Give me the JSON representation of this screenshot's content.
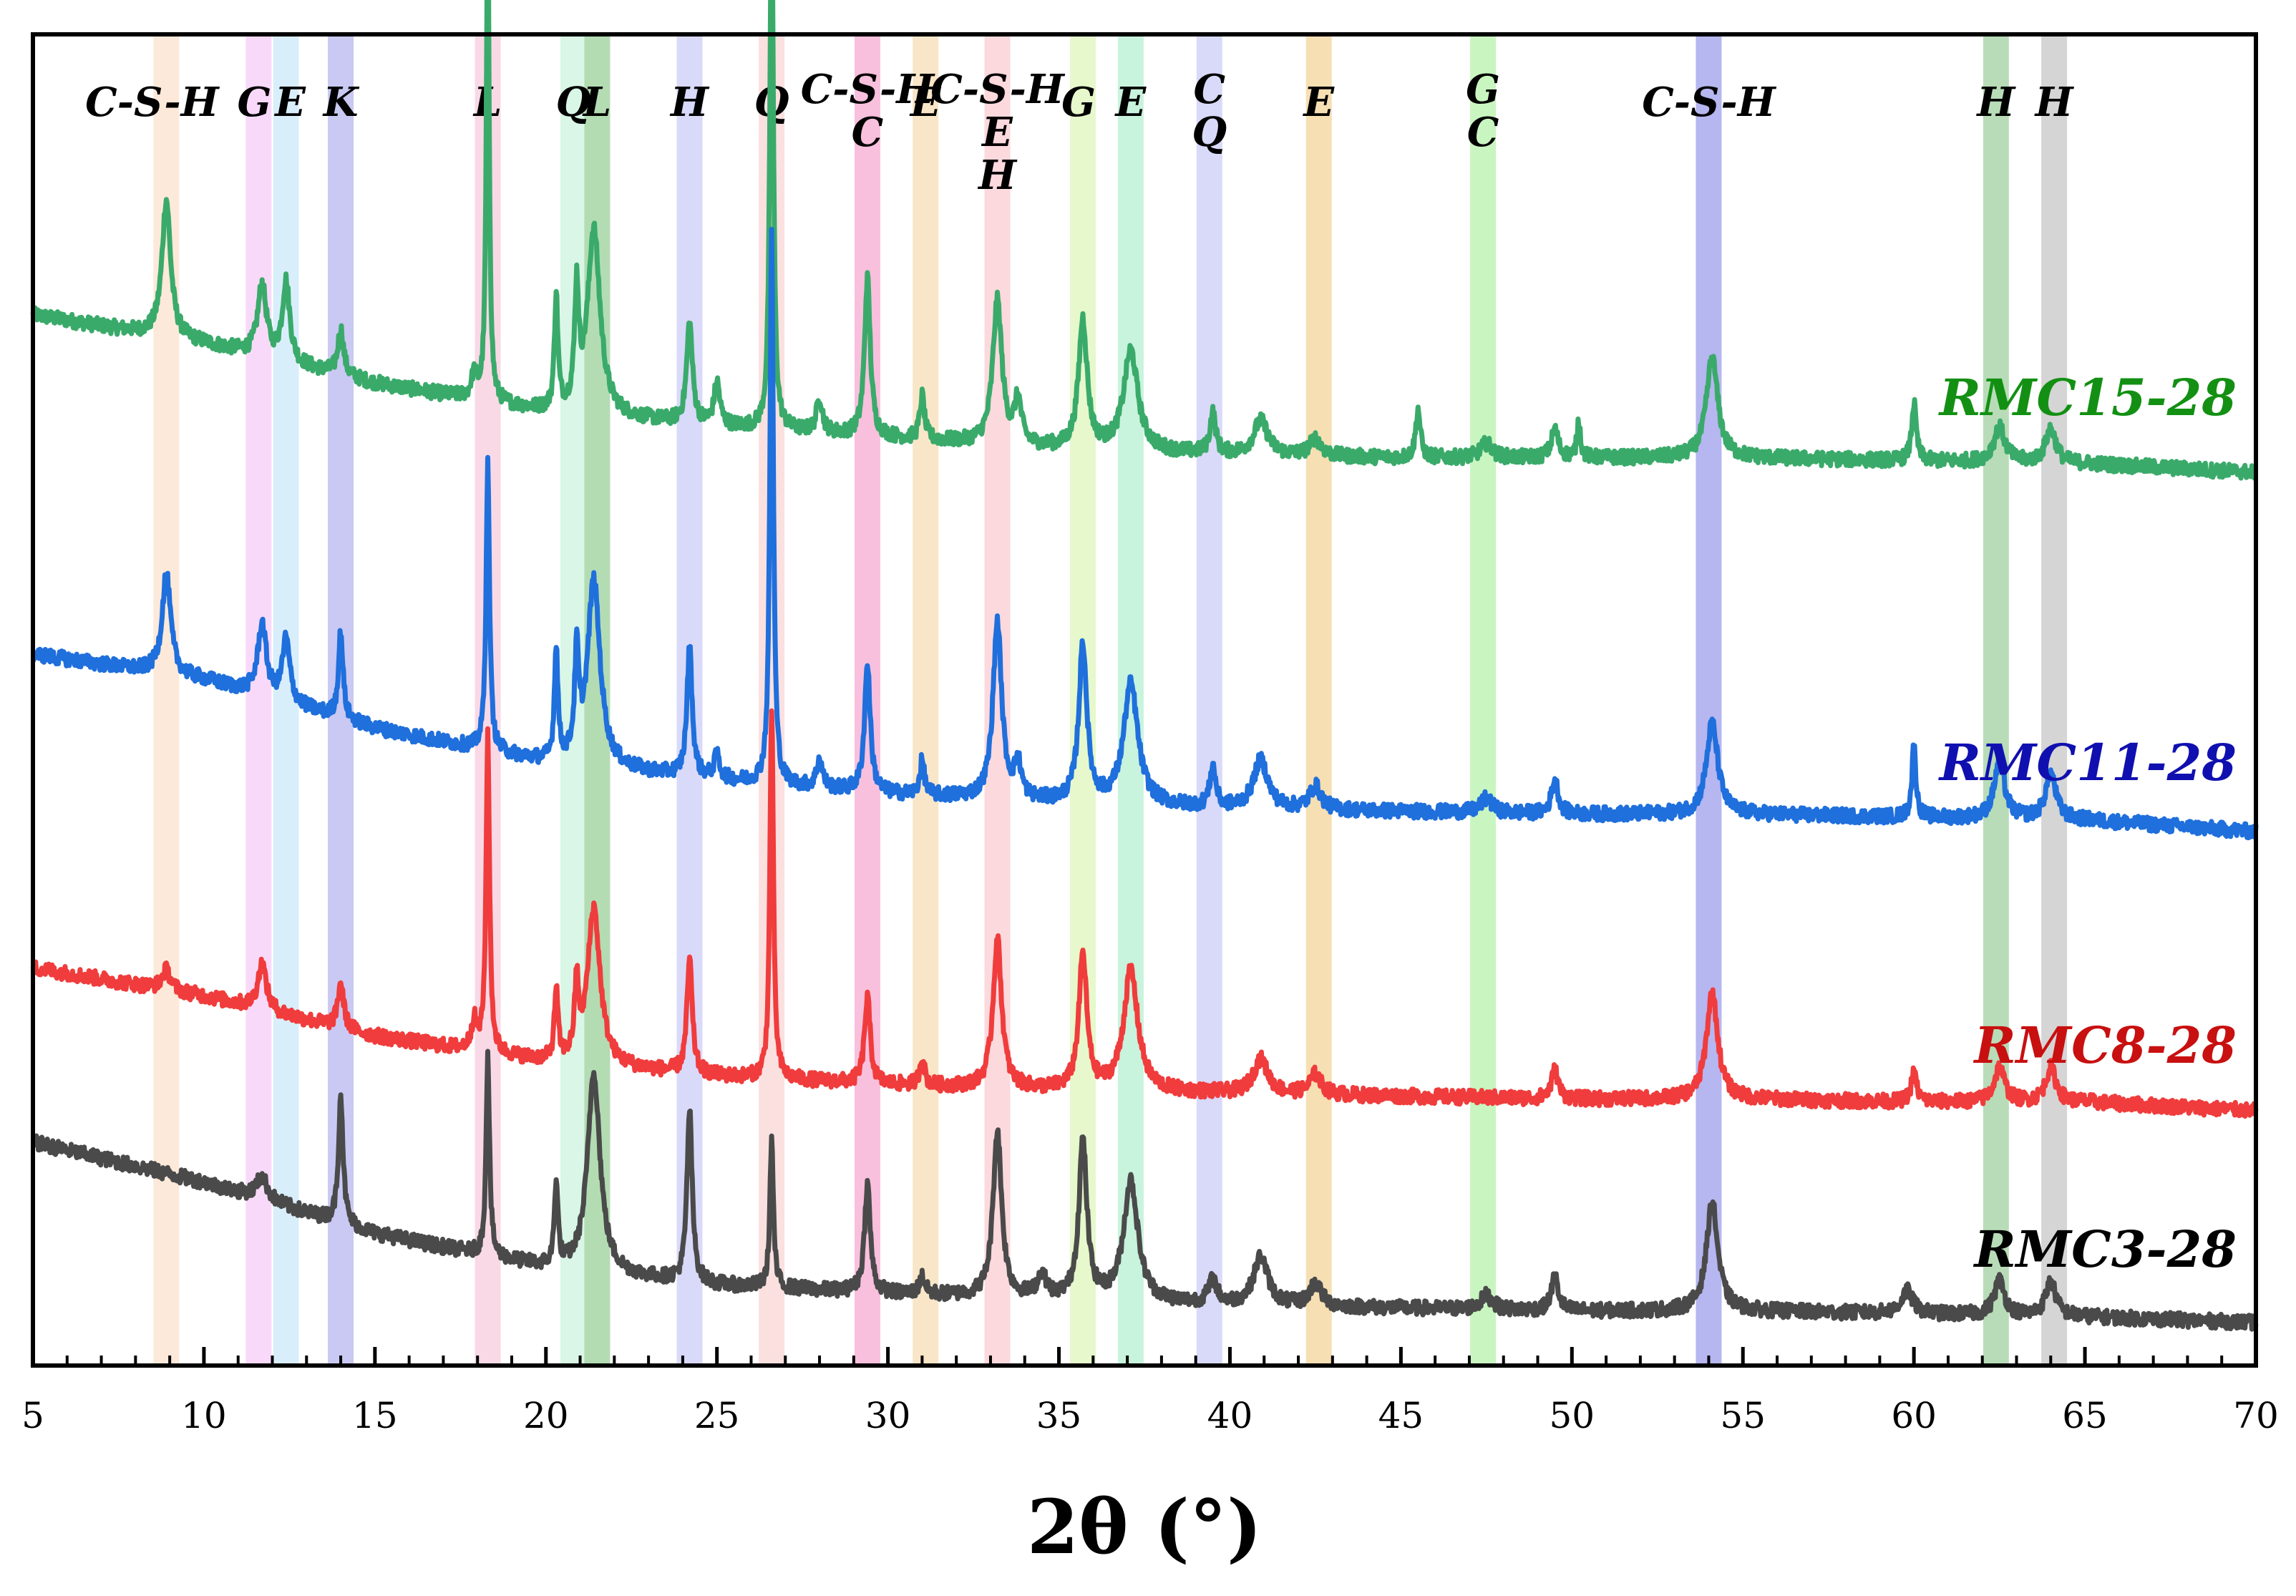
{
  "chart_data": {
    "type": "line",
    "xlabel": "2θ (°)",
    "ylabel": "",
    "xlim": [
      5,
      70
    ],
    "x_ticks": [
      5,
      10,
      15,
      20,
      25,
      30,
      35,
      40,
      45,
      50,
      55,
      60,
      65,
      70
    ],
    "x_tick_labels": [
      "5",
      "10",
      "15",
      "20",
      "25",
      "30",
      "35",
      "40",
      "45",
      "50",
      "55",
      "60",
      "65",
      "70"
    ],
    "y_ticks_shown": false,
    "grid": false,
    "legend": "inline labels at right end of each trace",
    "phase_bands": [
      {
        "label": "C-S-H",
        "x": 8.9,
        "color": "#fde9d9"
      },
      {
        "label": "G",
        "x": 11.6,
        "color": "#f9d9f9"
      },
      {
        "label": "E",
        "x": 12.4,
        "color": "#d9eefb"
      },
      {
        "label": "K",
        "x": 14.0,
        "color": "#c9c9f4"
      },
      {
        "label": "L",
        "x": 18.3,
        "color": "#f9d9e6"
      },
      {
        "label": "Q",
        "x": 20.8,
        "color": "#d9f6e6"
      },
      {
        "label": "L",
        "x": 21.5,
        "color": "#b3dcb3"
      },
      {
        "label": "H",
        "x": 24.2,
        "color": "#d9d9f9"
      },
      {
        "label": "Q",
        "x": 26.6,
        "color": "#fbe0e0"
      },
      {
        "label": "C-S-H\nC",
        "x": 29.4,
        "color": "#f8c0dd"
      },
      {
        "label": "E",
        "x": 31.1,
        "color": "#f9e6c8"
      },
      {
        "label": "C-S-H\nE\nH",
        "x": 33.2,
        "color": "#fbd9dd"
      },
      {
        "label": "G",
        "x": 35.7,
        "color": "#e6f8cc"
      },
      {
        "label": "E",
        "x": 37.1,
        "color": "#c8f3dd"
      },
      {
        "label": "C\nQ",
        "x": 39.4,
        "color": "#d9d9f9"
      },
      {
        "label": "E",
        "x": 42.6,
        "color": "#f6dfb3"
      },
      {
        "label": "G\nC",
        "x": 47.4,
        "color": "#c9f6c0"
      },
      {
        "label": "C-S-H",
        "x": 54.0,
        "color": "#b6b6f0"
      },
      {
        "label": "H",
        "x": 62.4,
        "color": "#b8dcb8"
      },
      {
        "label": "H",
        "x": 64.1,
        "color": "#d5d5d5"
      }
    ],
    "series": [
      {
        "name": "RMC15-28",
        "color": "#3aaa6a",
        "label_color": "#139013",
        "baseline": [
          [
            5,
            0.6
          ],
          [
            10,
            0.5
          ],
          [
            15,
            0.36
          ],
          [
            20,
            0.26
          ],
          [
            25,
            0.21
          ],
          [
            30,
            0.17
          ],
          [
            35,
            0.13
          ],
          [
            40,
            0.11
          ],
          [
            45,
            0.1
          ],
          [
            50,
            0.1
          ],
          [
            55,
            0.1
          ],
          [
            60,
            0.09
          ],
          [
            65,
            0.08
          ],
          [
            70,
            0.05
          ]
        ],
        "peaks": [
          [
            8.9,
            0.48,
            0.15
          ],
          [
            11.7,
            0.25,
            0.15
          ],
          [
            12.4,
            0.28,
            0.13
          ],
          [
            14.0,
            0.16,
            0.1
          ],
          [
            17.9,
            0.08,
            0.1
          ],
          [
            18.3,
            1.7,
            0.05
          ],
          [
            20.3,
            0.4,
            0.06
          ],
          [
            20.9,
            0.4,
            0.07
          ],
          [
            21.4,
            0.65,
            0.22
          ],
          [
            24.2,
            0.35,
            0.1
          ],
          [
            25.0,
            0.15,
            0.1
          ],
          [
            26.6,
            1.9,
            0.06
          ],
          [
            28.0,
            0.12,
            0.1
          ],
          [
            29.4,
            0.55,
            0.1
          ],
          [
            31.0,
            0.15,
            0.08
          ],
          [
            33.2,
            0.5,
            0.16
          ],
          [
            33.8,
            0.15,
            0.12
          ],
          [
            35.7,
            0.45,
            0.15
          ],
          [
            37.1,
            0.35,
            0.25
          ],
          [
            39.5,
            0.14,
            0.1
          ],
          [
            40.9,
            0.12,
            0.25
          ],
          [
            42.5,
            0.06,
            0.2
          ],
          [
            45.5,
            0.17,
            0.08
          ],
          [
            47.5,
            0.05,
            0.2
          ],
          [
            49.5,
            0.1,
            0.12
          ],
          [
            50.2,
            0.13,
            0.06
          ],
          [
            54.1,
            0.35,
            0.2
          ],
          [
            60.0,
            0.2,
            0.08
          ],
          [
            62.5,
            0.12,
            0.2
          ],
          [
            64.0,
            0.12,
            0.18
          ]
        ]
      },
      {
        "name": "RMC11-28",
        "color": "#1f6fdc",
        "label_color": "#1010b0",
        "baseline": [
          [
            5,
            0.64
          ],
          [
            10,
            0.55
          ],
          [
            15,
            0.38
          ],
          [
            20,
            0.26
          ],
          [
            25,
            0.2
          ],
          [
            30,
            0.15
          ],
          [
            35,
            0.12
          ],
          [
            40,
            0.1
          ],
          [
            45,
            0.09
          ],
          [
            50,
            0.08
          ],
          [
            55,
            0.08
          ],
          [
            60,
            0.07
          ],
          [
            65,
            0.06
          ],
          [
            70,
            0.02
          ]
        ],
        "peaks": [
          [
            8.9,
            0.35,
            0.15
          ],
          [
            11.7,
            0.25,
            0.15
          ],
          [
            12.4,
            0.22,
            0.13
          ],
          [
            14.0,
            0.3,
            0.08
          ],
          [
            18.3,
            1.0,
            0.06
          ],
          [
            20.3,
            0.4,
            0.06
          ],
          [
            20.9,
            0.35,
            0.07
          ],
          [
            21.4,
            0.65,
            0.22
          ],
          [
            24.2,
            0.45,
            0.09
          ],
          [
            25.0,
            0.08,
            0.1
          ],
          [
            26.6,
            1.92,
            0.06
          ],
          [
            28.0,
            0.1,
            0.1
          ],
          [
            29.4,
            0.45,
            0.1
          ],
          [
            31.0,
            0.12,
            0.08
          ],
          [
            33.2,
            0.62,
            0.15
          ],
          [
            33.8,
            0.12,
            0.12
          ],
          [
            35.7,
            0.55,
            0.14
          ],
          [
            37.1,
            0.42,
            0.25
          ],
          [
            39.5,
            0.14,
            0.1
          ],
          [
            40.9,
            0.17,
            0.25
          ],
          [
            42.5,
            0.08,
            0.2
          ],
          [
            47.5,
            0.05,
            0.2
          ],
          [
            49.5,
            0.12,
            0.12
          ],
          [
            54.1,
            0.32,
            0.2
          ],
          [
            60.0,
            0.25,
            0.07
          ],
          [
            62.5,
            0.2,
            0.18
          ],
          [
            64.0,
            0.16,
            0.18
          ]
        ]
      },
      {
        "name": "RMC8-28",
        "color": "#f03c3c",
        "label_color": "#c81010",
        "baseline": [
          [
            5,
            0.52
          ],
          [
            10,
            0.42
          ],
          [
            15,
            0.28
          ],
          [
            20,
            0.19
          ],
          [
            25,
            0.14
          ],
          [
            30,
            0.11
          ],
          [
            35,
            0.09
          ],
          [
            40,
            0.08
          ],
          [
            45,
            0.07
          ],
          [
            50,
            0.06
          ],
          [
            55,
            0.06
          ],
          [
            60,
            0.05
          ],
          [
            65,
            0.05
          ],
          [
            70,
            0.02
          ]
        ],
        "peaks": [
          [
            8.9,
            0.07,
            0.15
          ],
          [
            11.7,
            0.16,
            0.15
          ],
          [
            14.0,
            0.16,
            0.1
          ],
          [
            17.9,
            0.1,
            0.1
          ],
          [
            18.3,
            1.1,
            0.06
          ],
          [
            20.3,
            0.25,
            0.06
          ],
          [
            20.9,
            0.25,
            0.07
          ],
          [
            21.4,
            0.55,
            0.22
          ],
          [
            24.2,
            0.4,
            0.09
          ],
          [
            26.6,
            1.3,
            0.06
          ],
          [
            29.4,
            0.3,
            0.1
          ],
          [
            31.0,
            0.1,
            0.08
          ],
          [
            33.2,
            0.52,
            0.15
          ],
          [
            35.7,
            0.47,
            0.14
          ],
          [
            37.1,
            0.42,
            0.25
          ],
          [
            40.9,
            0.12,
            0.25
          ],
          [
            42.5,
            0.07,
            0.2
          ],
          [
            49.5,
            0.1,
            0.12
          ],
          [
            54.1,
            0.37,
            0.2
          ],
          [
            60.0,
            0.1,
            0.1
          ],
          [
            62.5,
            0.12,
            0.18
          ],
          [
            64.0,
            0.12,
            0.18
          ]
        ]
      },
      {
        "name": "RMC3-28",
        "color": "#4a4a4a",
        "label_color": "#000000",
        "baseline": [
          [
            5,
            0.66
          ],
          [
            10,
            0.52
          ],
          [
            15,
            0.34
          ],
          [
            20,
            0.22
          ],
          [
            25,
            0.16
          ],
          [
            30,
            0.13
          ],
          [
            35,
            0.11
          ],
          [
            40,
            0.09
          ],
          [
            45,
            0.08
          ],
          [
            50,
            0.07
          ],
          [
            55,
            0.07
          ],
          [
            60,
            0.06
          ],
          [
            65,
            0.05
          ],
          [
            70,
            0.03
          ]
        ],
        "peaks": [
          [
            11.7,
            0.08,
            0.2
          ],
          [
            14.0,
            0.45,
            0.08
          ],
          [
            18.3,
            0.7,
            0.06
          ],
          [
            20.3,
            0.3,
            0.06
          ],
          [
            21.4,
            0.7,
            0.22
          ],
          [
            24.2,
            0.6,
            0.09
          ],
          [
            26.6,
            0.52,
            0.06
          ],
          [
            29.4,
            0.38,
            0.1
          ],
          [
            31.0,
            0.06,
            0.1
          ],
          [
            33.2,
            0.58,
            0.15
          ],
          [
            34.5,
            0.08,
            0.15
          ],
          [
            35.7,
            0.55,
            0.14
          ],
          [
            37.1,
            0.42,
            0.25
          ],
          [
            39.5,
            0.08,
            0.15
          ],
          [
            40.9,
            0.17,
            0.25
          ],
          [
            42.5,
            0.08,
            0.2
          ],
          [
            47.5,
            0.05,
            0.2
          ],
          [
            49.5,
            0.12,
            0.12
          ],
          [
            54.1,
            0.38,
            0.2
          ],
          [
            59.8,
            0.08,
            0.2
          ],
          [
            62.5,
            0.12,
            0.18
          ],
          [
            64.0,
            0.12,
            0.18
          ]
        ]
      }
    ]
  }
}
